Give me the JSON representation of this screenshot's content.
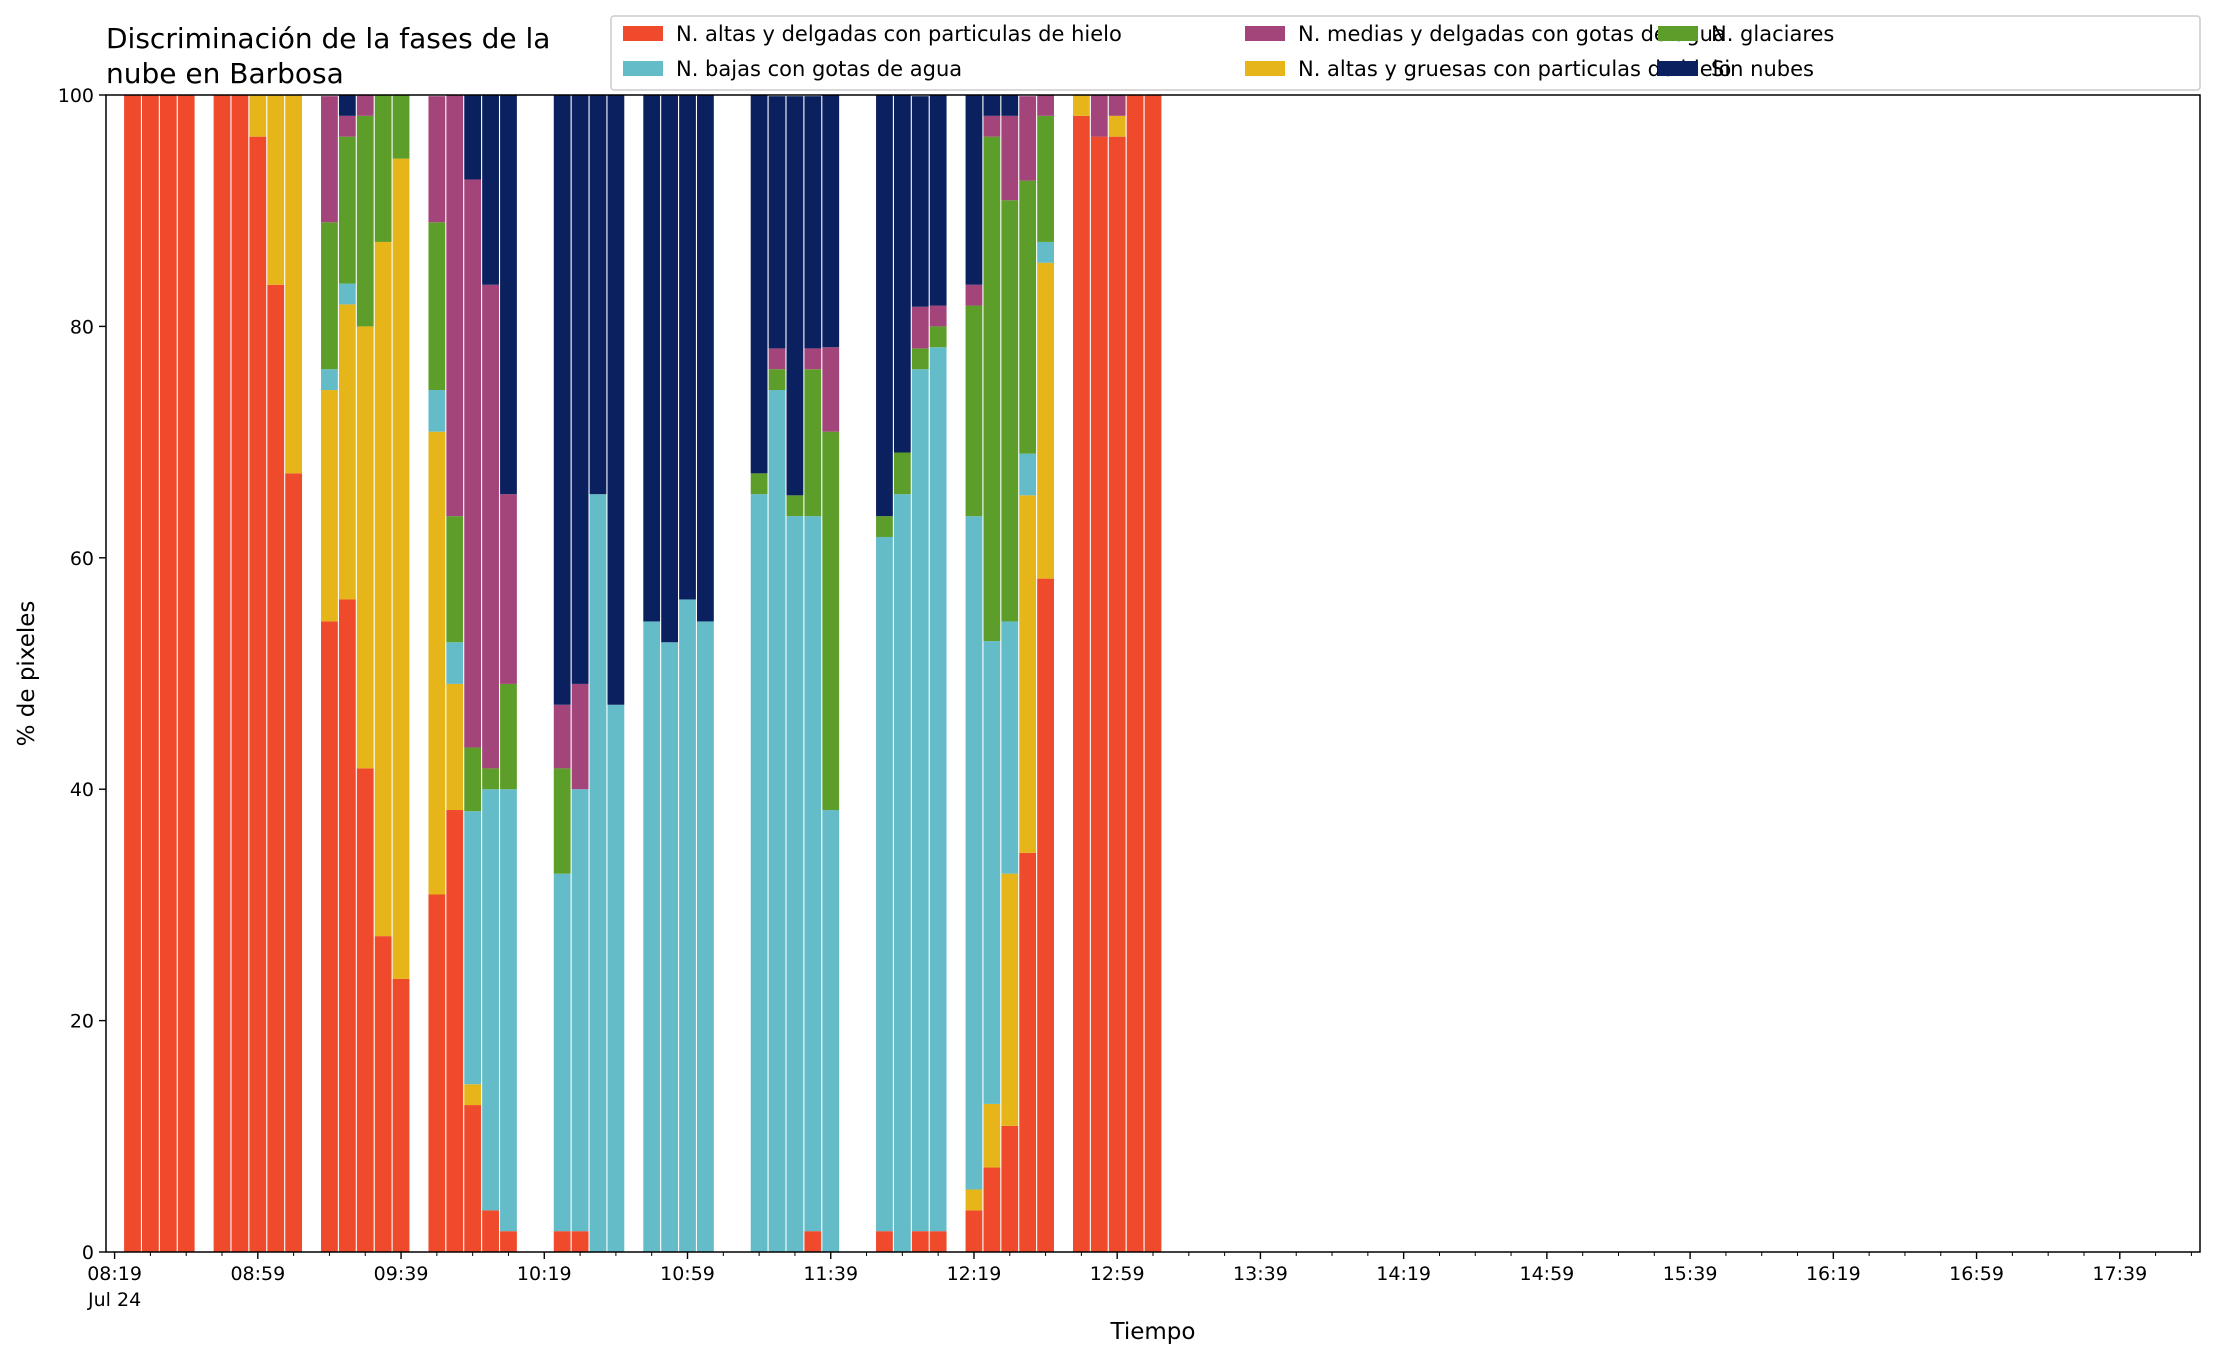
{
  "chart_data": {
    "type": "bar",
    "stacked": true,
    "title_lines": [
      "Discriminación de la fases de la",
      "nube en Barbosa"
    ],
    "xlabel": "Tiempo",
    "ylabel": "% de pixeles",
    "ylim": [
      0,
      100
    ],
    "yticks": [
      "0",
      "20",
      "40",
      "60",
      "80",
      "100"
    ],
    "xtick_labels": [
      "08:19",
      "08:59",
      "09:39",
      "10:19",
      "10:59",
      "11:39",
      "12:19",
      "12:59",
      "13:39",
      "14:19",
      "14:59",
      "15:39",
      "16:19",
      "16:59",
      "17:39"
    ],
    "xtick_date": "Jul 24",
    "legend_position": "top-right",
    "grid": false,
    "series": [
      {
        "name": "N. altas y delgadas con particulas de hielo",
        "color": "#ee4a2b"
      },
      {
        "name": "N. altas y gruesas con particulas de hielo",
        "color": "#e5b51a"
      },
      {
        "name": "N. bajas con gotas de agua",
        "color": "#64bcc8"
      },
      {
        "name": "N. glaciares",
        "color": "#5d9e2a"
      },
      {
        "name": "N. medias y delgadas con gotas de agua",
        "color": "#a3447a"
      },
      {
        "name": "Sin nubes",
        "color": "#0b205e"
      }
    ],
    "legend_order": [
      0,
      2,
      4,
      1,
      3,
      5
    ],
    "times": [
      "08:19",
      "08:24",
      "08:29",
      "08:34",
      "08:39",
      "08:44",
      "08:49",
      "08:54",
      "08:59",
      "09:04",
      "09:09",
      "09:14",
      "09:19",
      "09:24",
      "09:29",
      "09:34",
      "09:39",
      "09:44",
      "09:49",
      "09:54",
      "09:59",
      "10:04",
      "10:09",
      "10:14",
      "10:19",
      "10:24",
      "10:29",
      "10:34",
      "10:39",
      "10:44",
      "10:49",
      "10:54",
      "10:59",
      "11:04",
      "11:09",
      "11:14",
      "11:19",
      "11:24",
      "11:29",
      "11:34",
      "11:39",
      "11:44",
      "11:49",
      "11:54",
      "11:59",
      "12:04",
      "12:09",
      "12:14",
      "12:19",
      "12:24",
      "12:29",
      "12:34",
      "12:39",
      "12:44",
      "12:49",
      "12:54",
      "12:59",
      "13:04",
      "13:09",
      "13:14",
      "13:19",
      "13:24",
      "13:29",
      "13:34",
      "13:39",
      "13:44",
      "13:49",
      "13:54",
      "13:59",
      "14:04",
      "14:09",
      "14:14",
      "14:19",
      "14:24",
      "14:29",
      "14:34",
      "14:39",
      "14:44",
      "14:49",
      "14:54",
      "14:59",
      "15:04",
      "15:09",
      "15:14",
      "15:19",
      "15:24",
      "15:29",
      "15:34",
      "15:39",
      "15:44",
      "15:49",
      "15:54",
      "15:59",
      "16:04",
      "16:09",
      "16:14",
      "16:19",
      "16:24",
      "16:29",
      "16:34",
      "16:39",
      "16:44",
      "16:49",
      "16:54",
      "16:59",
      "17:04",
      "17:09",
      "17:14",
      "17:19",
      "17:24",
      "17:29",
      "17:34",
      "17:39",
      "17:44",
      "17:49",
      "17:54",
      "17:59"
    ],
    "bars": [
      {
        "time": "08:24",
        "values": [
          100,
          0,
          0,
          0,
          0,
          0
        ]
      },
      {
        "time": "08:29",
        "values": [
          100,
          0,
          0,
          0,
          0,
          0
        ]
      },
      {
        "time": "08:34",
        "values": [
          100,
          0,
          0,
          0,
          0,
          0
        ]
      },
      {
        "time": "08:39",
        "values": [
          100,
          0,
          0,
          0,
          0,
          0
        ]
      },
      {
        "time": "08:49",
        "values": [
          100,
          0,
          0,
          0,
          0,
          0
        ]
      },
      {
        "time": "08:54",
        "values": [
          100,
          0,
          0,
          0,
          0,
          0
        ]
      },
      {
        "time": "08:59",
        "values": [
          96.4,
          3.6,
          0,
          0,
          0,
          0
        ]
      },
      {
        "time": "09:04",
        "values": [
          83.6,
          16.4,
          0,
          0,
          0,
          0
        ]
      },
      {
        "time": "09:09",
        "values": [
          67.3,
          32.7,
          0,
          0,
          0,
          0
        ]
      },
      {
        "time": "09:19",
        "values": [
          54.5,
          20.0,
          1.8,
          12.7,
          10.9,
          0
        ]
      },
      {
        "time": "09:24",
        "values": [
          56.4,
          25.5,
          1.8,
          12.7,
          1.8,
          1.8
        ]
      },
      {
        "time": "09:29",
        "values": [
          41.8,
          38.2,
          0,
          18.2,
          1.8,
          0
        ]
      },
      {
        "time": "09:34",
        "values": [
          27.3,
          60.0,
          0,
          12.7,
          0,
          0
        ]
      },
      {
        "time": "09:39",
        "values": [
          23.6,
          70.9,
          0,
          5.5,
          0,
          0
        ]
      },
      {
        "time": "09:49",
        "values": [
          30.9,
          40.0,
          3.6,
          14.5,
          10.9,
          0
        ]
      },
      {
        "time": "09:54",
        "values": [
          38.2,
          10.9,
          3.6,
          10.9,
          36.4,
          0
        ]
      },
      {
        "time": "09:59",
        "values": [
          12.7,
          1.8,
          23.6,
          5.5,
          49.1,
          7.3
        ]
      },
      {
        "time": "10:04",
        "values": [
          3.6,
          0,
          36.4,
          1.8,
          41.8,
          16.4
        ]
      },
      {
        "time": "10:09",
        "values": [
          1.8,
          0,
          38.2,
          9.1,
          16.4,
          34.5
        ]
      },
      {
        "time": "10:24",
        "values": [
          1.8,
          0,
          30.9,
          9.1,
          5.5,
          52.7
        ]
      },
      {
        "time": "10:29",
        "values": [
          1.8,
          0,
          38.2,
          0,
          9.1,
          50.9
        ]
      },
      {
        "time": "10:34",
        "values": [
          0,
          0,
          65.5,
          0,
          0,
          34.5
        ]
      },
      {
        "time": "10:39",
        "values": [
          0,
          0,
          47.3,
          0,
          0,
          52.7
        ]
      },
      {
        "time": "10:49",
        "values": [
          0,
          0,
          54.5,
          0,
          0,
          45.5
        ]
      },
      {
        "time": "10:54",
        "values": [
          0,
          0,
          52.7,
          0,
          0,
          47.3
        ]
      },
      {
        "time": "10:59",
        "values": [
          0,
          0,
          56.4,
          0,
          0,
          43.6
        ]
      },
      {
        "time": "11:04",
        "values": [
          0,
          0,
          54.5,
          0,
          0,
          45.5
        ]
      },
      {
        "time": "11:19",
        "values": [
          0,
          0,
          65.5,
          1.8,
          0,
          32.7
        ]
      },
      {
        "time": "11:24",
        "values": [
          0,
          0,
          74.5,
          1.8,
          1.8,
          21.8
        ]
      },
      {
        "time": "11:29",
        "values": [
          0,
          0,
          63.6,
          1.8,
          0,
          34.5
        ]
      },
      {
        "time": "11:34",
        "values": [
          1.8,
          0,
          61.8,
          12.7,
          1.8,
          21.8
        ]
      },
      {
        "time": "11:39",
        "values": [
          0,
          0,
          38.2,
          32.7,
          7.3,
          21.8
        ]
      },
      {
        "time": "11:54",
        "values": [
          1.8,
          0,
          60.0,
          1.8,
          0,
          36.4
        ]
      },
      {
        "time": "11:59",
        "values": [
          0,
          0,
          65.5,
          3.6,
          0,
          30.9
        ]
      },
      {
        "time": "12:04",
        "values": [
          1.8,
          0,
          74.5,
          1.8,
          3.6,
          18.2
        ]
      },
      {
        "time": "12:09",
        "values": [
          1.8,
          0,
          76.4,
          1.8,
          1.8,
          18.2
        ]
      },
      {
        "time": "12:19",
        "values": [
          3.6,
          1.8,
          58.2,
          18.2,
          1.8,
          16.4
        ]
      },
      {
        "time": "12:24",
        "values": [
          7.3,
          5.5,
          40.0,
          43.6,
          1.8,
          1.8
        ]
      },
      {
        "time": "12:29",
        "values": [
          10.9,
          21.8,
          21.8,
          36.4,
          7.3,
          1.8
        ]
      },
      {
        "time": "12:34",
        "values": [
          34.5,
          30.9,
          3.6,
          23.6,
          7.3,
          0
        ]
      },
      {
        "time": "12:39",
        "values": [
          58.2,
          27.3,
          1.8,
          10.9,
          1.8,
          0
        ]
      },
      {
        "time": "12:49",
        "values": [
          98.2,
          1.8,
          0,
          0,
          0,
          0
        ]
      },
      {
        "time": "12:54",
        "values": [
          96.4,
          0,
          0,
          0,
          3.6,
          0
        ]
      },
      {
        "time": "12:59",
        "values": [
          96.4,
          1.8,
          0,
          0,
          1.8,
          0
        ]
      },
      {
        "time": "13:04",
        "values": [
          100,
          0,
          0,
          0,
          0,
          0
        ]
      },
      {
        "time": "13:09",
        "values": [
          100,
          0,
          0,
          0,
          0,
          0
        ]
      }
    ]
  }
}
